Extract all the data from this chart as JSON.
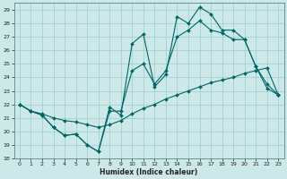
{
  "xlabel": "Humidex (Indice chaleur)",
  "xlim": [
    -0.5,
    23.5
  ],
  "ylim": [
    18,
    29.5
  ],
  "yticks": [
    18,
    19,
    20,
    21,
    22,
    23,
    24,
    25,
    26,
    27,
    28,
    29
  ],
  "xticks": [
    0,
    1,
    2,
    3,
    4,
    5,
    6,
    7,
    8,
    9,
    10,
    11,
    12,
    13,
    14,
    15,
    16,
    17,
    18,
    19,
    20,
    21,
    22,
    23
  ],
  "bg_color": "#cce8e8",
  "grid_color": "#99cccc",
  "line_color": "#006666",
  "line1_y": [
    22.0,
    21.5,
    21.2,
    20.3,
    19.7,
    19.8,
    19.0,
    18.5,
    21.8,
    21.2,
    26.5,
    27.2,
    23.3,
    24.2,
    28.5,
    28.0,
    29.2,
    28.7,
    27.5,
    27.5,
    26.8,
    24.8,
    23.2,
    22.7
  ],
  "line2_y": [
    22.0,
    21.5,
    21.2,
    20.3,
    19.7,
    19.8,
    19.0,
    18.5,
    21.5,
    21.5,
    24.5,
    25.0,
    23.5,
    24.5,
    27.0,
    27.5,
    28.2,
    27.5,
    27.3,
    26.8,
    26.8,
    24.8,
    23.5,
    22.7
  ],
  "line3_y": [
    22.0,
    21.5,
    21.3,
    21.0,
    20.8,
    20.7,
    20.5,
    20.3,
    20.5,
    20.8,
    21.3,
    21.7,
    22.0,
    22.4,
    22.7,
    23.0,
    23.3,
    23.6,
    23.8,
    24.0,
    24.3,
    24.5,
    24.7,
    22.7
  ]
}
